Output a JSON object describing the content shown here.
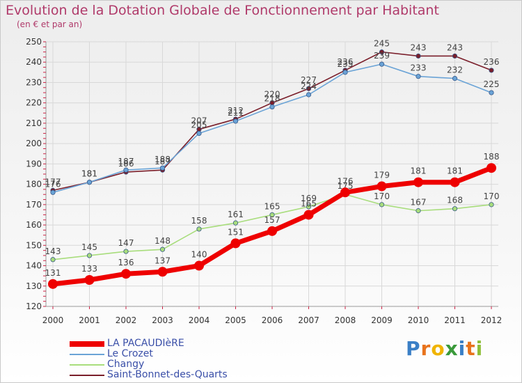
{
  "header": {
    "title": "Evolution de la Dotation Globale de Fonctionnement par Habitant",
    "subtitle": "(en € et par an)"
  },
  "logo": {
    "text": "Proxiti",
    "letters": [
      {
        "ch": "P",
        "color": "#3a7fc6"
      },
      {
        "ch": "r",
        "color": "#e8731c"
      },
      {
        "ch": "o",
        "color": "#f0b400"
      },
      {
        "ch": "x",
        "color": "#3a9a3a"
      },
      {
        "ch": "i",
        "color": "#3a7fc6"
      },
      {
        "ch": "t",
        "color": "#e8731c"
      },
      {
        "ch": "i",
        "color": "#8fbf3a"
      }
    ]
  },
  "chart_data": {
    "type": "line",
    "title": "Evolution de la Dotation Globale de Fonctionnement par Habitant",
    "subtitle": "(en € et par an)",
    "xlabel": "",
    "ylabel": "",
    "x": [
      "2000",
      "2001",
      "2002",
      "2003",
      "2004",
      "2005",
      "2006",
      "2007",
      "2008",
      "2009",
      "2010",
      "2011",
      "2012"
    ],
    "ylim": [
      120,
      250
    ],
    "yticks": [
      120,
      130,
      140,
      150,
      160,
      170,
      180,
      190,
      200,
      210,
      220,
      230,
      240,
      250
    ],
    "grid": true,
    "legend_position": "bottom-left",
    "series": [
      {
        "name": "Saint-Bonnet-des-Quarts",
        "color": "#7a1e2a",
        "values": [
          177,
          181,
          186,
          187,
          207,
          212,
          220,
          227,
          236,
          245,
          243,
          243,
          236
        ]
      },
      {
        "name": "Le Crozet",
        "color": "#6aa3d6",
        "values": [
          176,
          181,
          187,
          188,
          205,
          211,
          218,
          224,
          235,
          239,
          233,
          232,
          225
        ]
      },
      {
        "name": "Changy",
        "color": "#a8dd7c",
        "values": [
          143,
          145,
          147,
          148,
          158,
          161,
          165,
          169,
          175,
          170,
          167,
          168,
          170
        ]
      },
      {
        "name": "LA PACAUDIèRE",
        "color": "#ee0000",
        "values": [
          131,
          133,
          136,
          137,
          140,
          151,
          157,
          165,
          176,
          179,
          181,
          181,
          188
        ]
      }
    ],
    "legend_order": [
      "LA PACAUDIèRE",
      "Le Crozet",
      "Changy",
      "Saint-Bonnet-des-Quarts"
    ]
  }
}
